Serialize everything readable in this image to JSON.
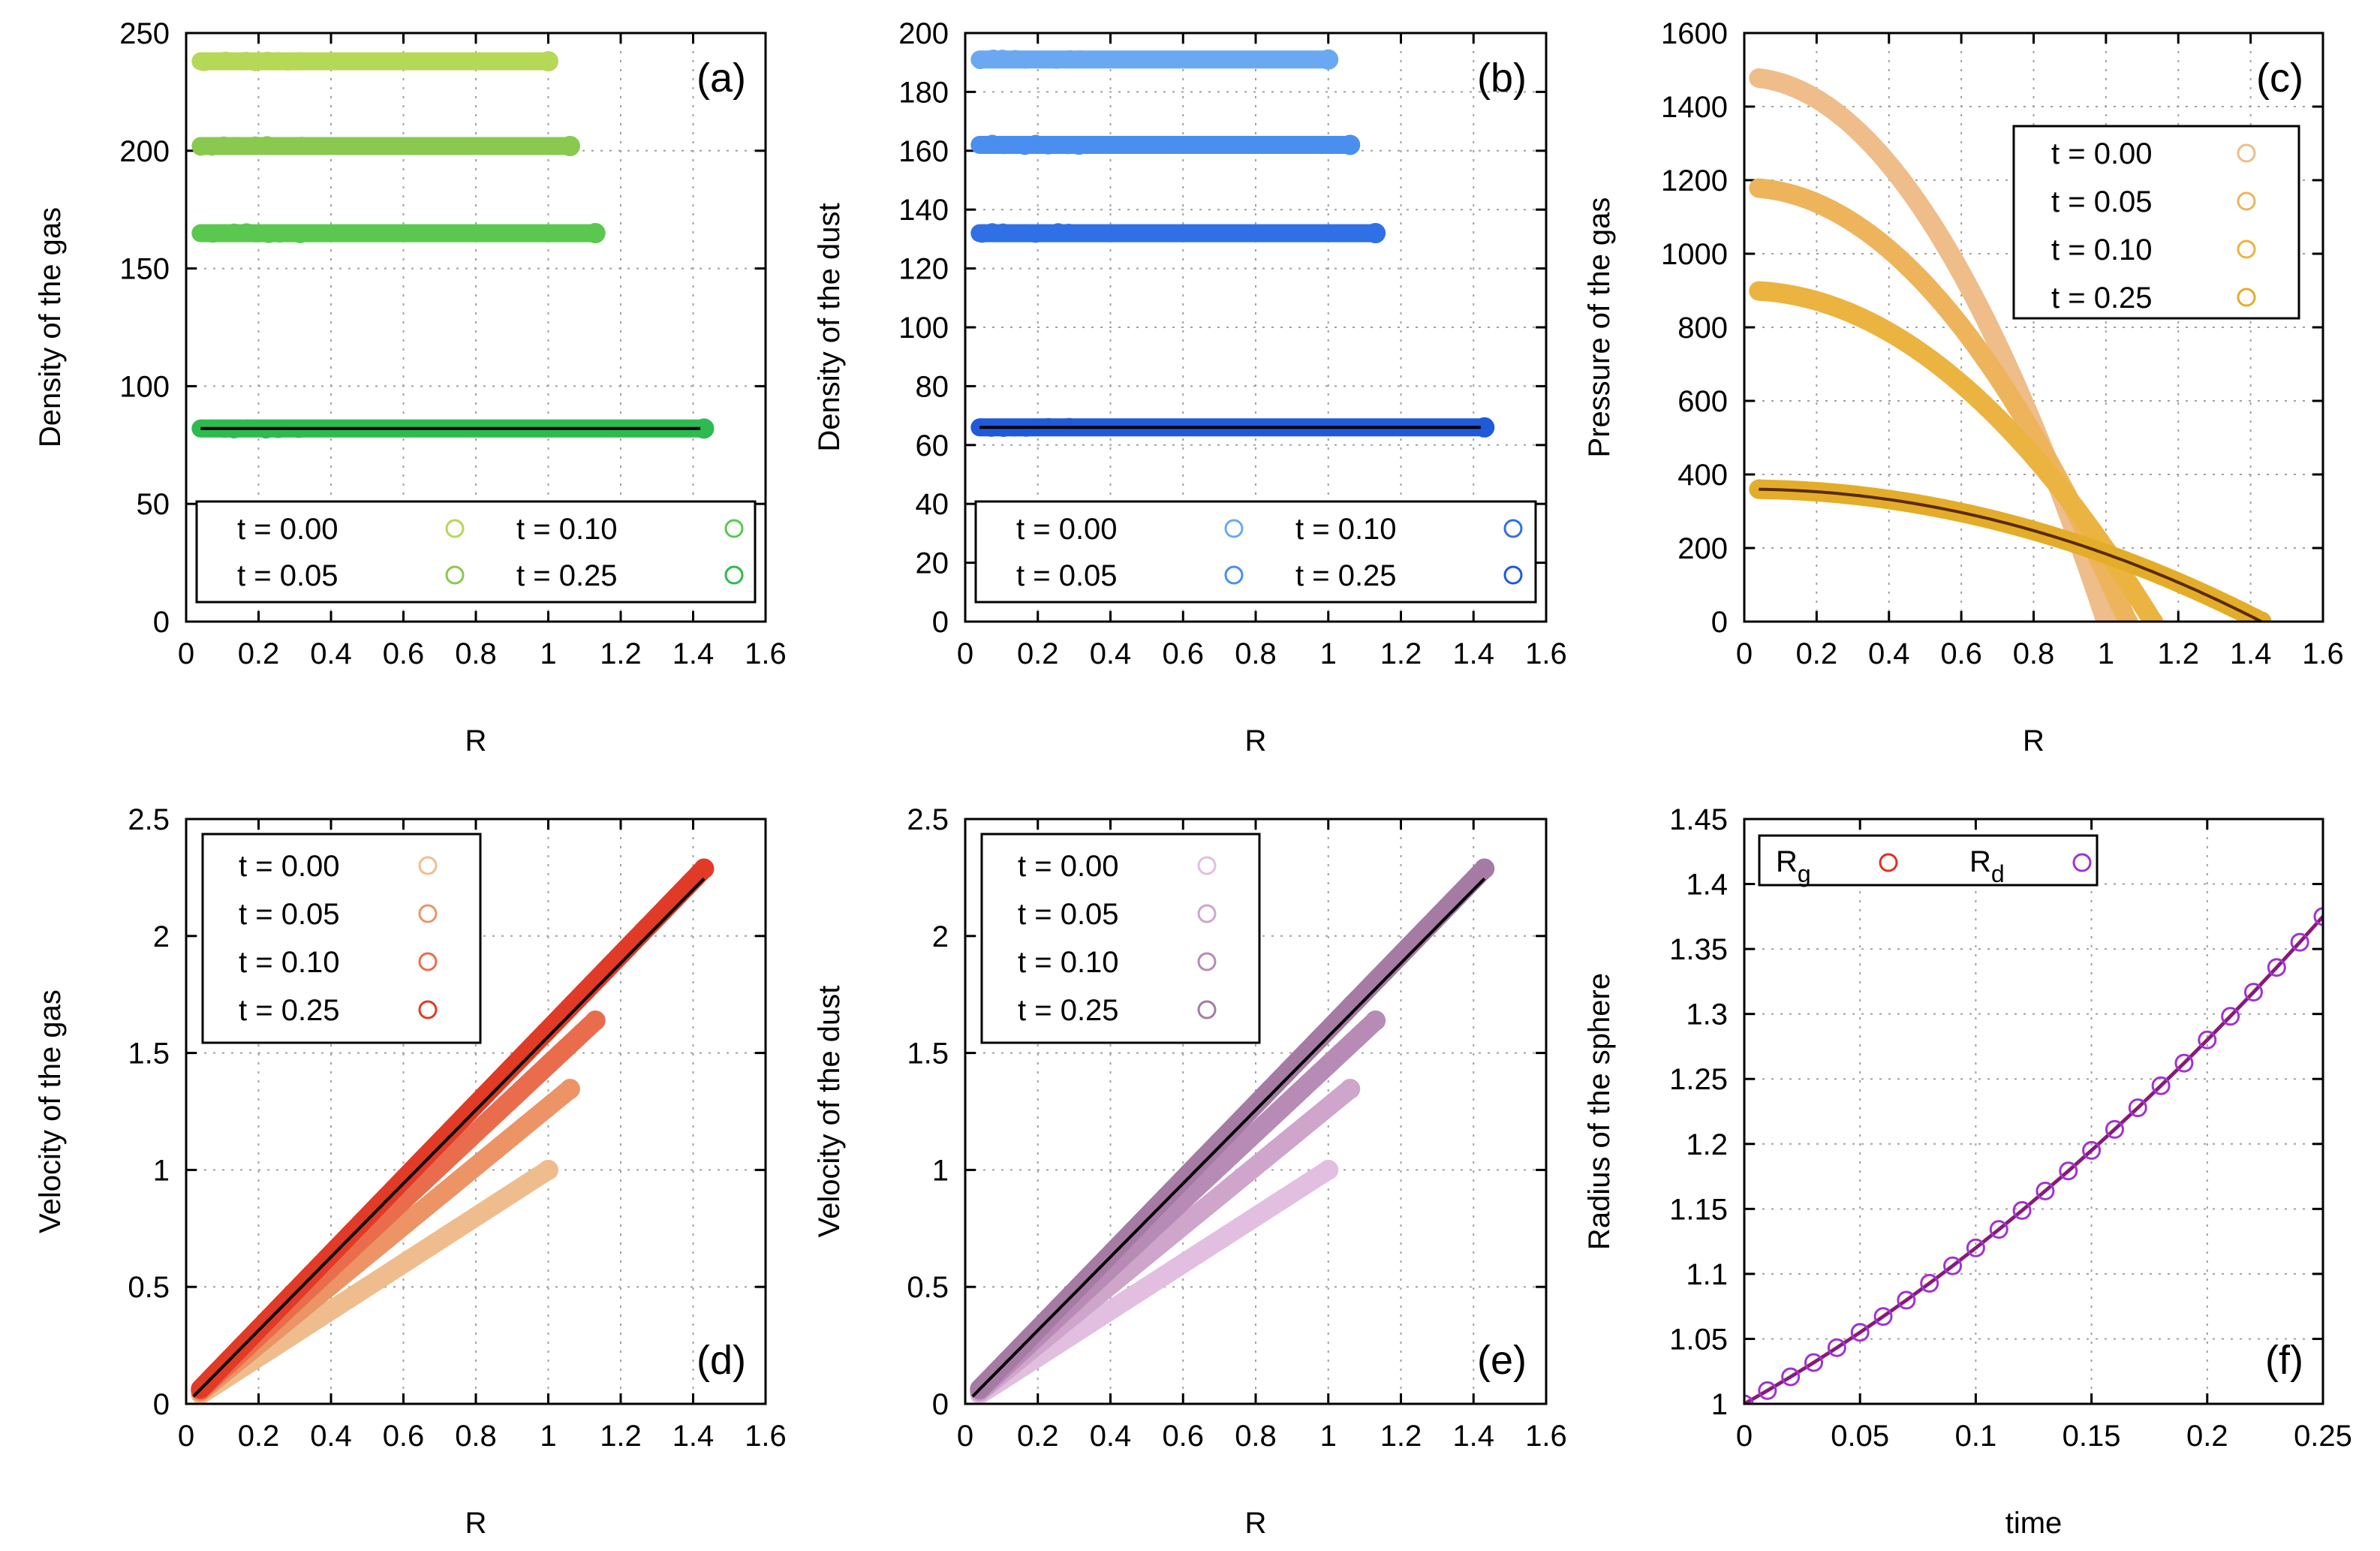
{
  "chart_data": [
    {
      "id": "a",
      "type": "scatter",
      "panel_label": "(a)",
      "xlabel": "R",
      "ylabel": "Density of the gas",
      "xlim": [
        0,
        1.6
      ],
      "ylim": [
        0,
        250
      ],
      "xticks": [
        0,
        0.2,
        0.4,
        0.6,
        0.8,
        1,
        1.2,
        1.4,
        1.6
      ],
      "xtick_labels": [
        "0",
        "0.2",
        "0.4",
        "0.6",
        "0.8",
        "1",
        "1.2",
        "1.4",
        "1.6"
      ],
      "yticks": [
        0,
        50,
        100,
        150,
        200,
        250
      ],
      "ytick_labels": [
        "0",
        "50",
        "100",
        "150",
        "200",
        "250"
      ],
      "legend": {
        "position": "bottom",
        "columns": 2
      },
      "series": [
        {
          "name": "t = 0.00",
          "color": "#b6d857",
          "kind": "flat",
          "value": 238,
          "rmax": 1.0
        },
        {
          "name": "t = 0.05",
          "color": "#8ac94f",
          "kind": "flat",
          "value": 202,
          "rmax": 1.06
        },
        {
          "name": "t = 0.10",
          "color": "#5ac84e",
          "kind": "flat",
          "value": 165,
          "rmax": 1.13
        },
        {
          "name": "t = 0.25",
          "color": "#2dbb4f",
          "kind": "flat",
          "value": 82,
          "rmax": 1.43
        }
      ],
      "analytic": {
        "kind": "flat",
        "value": 82,
        "rmax": 1.42,
        "color": "#000000"
      }
    },
    {
      "id": "b",
      "type": "scatter",
      "panel_label": "(b)",
      "xlabel": "R",
      "ylabel": "Density of the dust",
      "xlim": [
        0,
        1.6
      ],
      "ylim": [
        0,
        200
      ],
      "xticks": [
        0,
        0.2,
        0.4,
        0.6,
        0.8,
        1,
        1.2,
        1.4,
        1.6
      ],
      "xtick_labels": [
        "0",
        "0.2",
        "0.4",
        "0.6",
        "0.8",
        "1",
        "1.2",
        "1.4",
        "1.6"
      ],
      "yticks": [
        0,
        20,
        40,
        60,
        80,
        100,
        120,
        140,
        160,
        180,
        200
      ],
      "ytick_labels": [
        "0",
        "20",
        "40",
        "60",
        "80",
        "100",
        "120",
        "140",
        "160",
        "180",
        "200"
      ],
      "legend": {
        "position": "bottom",
        "columns": 2
      },
      "series": [
        {
          "name": "t = 0.00",
          "color": "#6aa9f2",
          "kind": "flat",
          "value": 191,
          "rmax": 1.0
        },
        {
          "name": "t = 0.05",
          "color": "#4a8ef0",
          "kind": "flat",
          "value": 162,
          "rmax": 1.06
        },
        {
          "name": "t = 0.10",
          "color": "#2f70e6",
          "kind": "flat",
          "value": 132,
          "rmax": 1.13
        },
        {
          "name": "t = 0.25",
          "color": "#1f5ad9",
          "kind": "flat",
          "value": 66,
          "rmax": 1.43
        }
      ],
      "analytic": {
        "kind": "flat",
        "value": 66,
        "rmax": 1.42,
        "color": "#000000"
      }
    },
    {
      "id": "c",
      "type": "scatter",
      "panel_label": "(c)",
      "xlabel": "R",
      "ylabel": "Pressure of the gas",
      "xlim": [
        0,
        1.6
      ],
      "ylim": [
        0,
        1600
      ],
      "xticks": [
        0,
        0.2,
        0.4,
        0.6,
        0.8,
        1,
        1.2,
        1.4,
        1.6
      ],
      "xtick_labels": [
        "0",
        "0.2",
        "0.4",
        "0.6",
        "0.8",
        "1",
        "1.2",
        "1.4",
        "1.6"
      ],
      "yticks": [
        0,
        200,
        400,
        600,
        800,
        1000,
        1200,
        1400,
        1600
      ],
      "ytick_labels": [
        "0",
        "200",
        "400",
        "600",
        "800",
        "1000",
        "1200",
        "1400",
        "1600"
      ],
      "legend": {
        "position": "top-right",
        "columns": 1
      },
      "series": [
        {
          "name": "t = 0.00",
          "color": "#eebd8a",
          "kind": "parabola",
          "p0": 1480,
          "rmax": 1.0
        },
        {
          "name": "t = 0.05",
          "color": "#edb45c",
          "kind": "parabola",
          "p0": 1180,
          "rmax": 1.06
        },
        {
          "name": "t = 0.10",
          "color": "#ebb33f",
          "kind": "parabola",
          "p0": 900,
          "rmax": 1.13
        },
        {
          "name": "t = 0.25",
          "color": "#e3ad2a",
          "kind": "parabola",
          "p0": 360,
          "rmax": 1.43
        }
      ],
      "analytic": {
        "kind": "parabola",
        "p0": 360,
        "rmax": 1.43,
        "color": "#5a2a00"
      }
    },
    {
      "id": "d",
      "type": "scatter",
      "panel_label": "(d)",
      "xlabel": "R",
      "ylabel": "Velocity of the gas",
      "xlim": [
        0,
        1.6
      ],
      "ylim": [
        0,
        2.5
      ],
      "xticks": [
        0,
        0.2,
        0.4,
        0.6,
        0.8,
        1,
        1.2,
        1.4,
        1.6
      ],
      "xtick_labels": [
        "0",
        "0.2",
        "0.4",
        "0.6",
        "0.8",
        "1",
        "1.2",
        "1.4",
        "1.6"
      ],
      "yticks": [
        0,
        0.5,
        1,
        1.5,
        2,
        2.5
      ],
      "ytick_labels": [
        "0",
        "0.5",
        "1",
        "1.5",
        "2",
        "2.5"
      ],
      "legend": {
        "position": "top-left",
        "columns": 1
      },
      "series": [
        {
          "name": "t = 0.00",
          "color": "#efbd8d",
          "kind": "linear",
          "slope": 1.0,
          "rmax": 1.0
        },
        {
          "name": "t = 0.05",
          "color": "#ec9466",
          "kind": "linear",
          "slope": 1.27,
          "rmax": 1.06
        },
        {
          "name": "t = 0.10",
          "color": "#e96d4c",
          "kind": "linear",
          "slope": 1.45,
          "rmax": 1.13
        },
        {
          "name": "t = 0.25",
          "color": "#e13a26",
          "kind": "linear",
          "slope": 1.6,
          "rmax": 1.43
        }
      ],
      "analytic": {
        "kind": "linear",
        "slope": 1.57,
        "rmin": 0.02,
        "rmax": 1.43,
        "color": "#000000"
      }
    },
    {
      "id": "e",
      "type": "scatter",
      "panel_label": "(e)",
      "xlabel": "R",
      "ylabel": "Velocity of the dust",
      "xlim": [
        0,
        1.6
      ],
      "ylim": [
        0,
        2.5
      ],
      "xticks": [
        0,
        0.2,
        0.4,
        0.6,
        0.8,
        1,
        1.2,
        1.4,
        1.6
      ],
      "xtick_labels": [
        "0",
        "0.2",
        "0.4",
        "0.6",
        "0.8",
        "1",
        "1.2",
        "1.4",
        "1.6"
      ],
      "yticks": [
        0,
        0.5,
        1,
        1.5,
        2,
        2.5
      ],
      "ytick_labels": [
        "0",
        "0.5",
        "1",
        "1.5",
        "2",
        "2.5"
      ],
      "legend": {
        "position": "top-left",
        "columns": 1
      },
      "series": [
        {
          "name": "t = 0.00",
          "color": "#e2bfe0",
          "kind": "linear",
          "slope": 1.0,
          "rmax": 1.0
        },
        {
          "name": "t = 0.05",
          "color": "#cfa5cc",
          "kind": "linear",
          "slope": 1.27,
          "rmax": 1.06
        },
        {
          "name": "t = 0.10",
          "color": "#b88ab6",
          "kind": "linear",
          "slope": 1.45,
          "rmax": 1.13
        },
        {
          "name": "t = 0.25",
          "color": "#a57aa3",
          "kind": "linear",
          "slope": 1.6,
          "rmax": 1.43
        }
      ],
      "analytic": {
        "kind": "linear",
        "slope": 1.57,
        "rmin": 0.02,
        "rmax": 1.43,
        "color": "#000000"
      }
    },
    {
      "id": "f",
      "type": "line",
      "panel_label": "(f)",
      "xlabel": "time",
      "ylabel": "Radius of the sphere",
      "xlim": [
        0,
        0.25
      ],
      "ylim": [
        1,
        1.45
      ],
      "xticks": [
        0,
        0.05,
        0.1,
        0.15,
        0.2,
        0.25
      ],
      "xtick_labels": [
        "0",
        "0.05",
        "0.1",
        "0.15",
        "0.2",
        "0.25"
      ],
      "yticks": [
        1,
        1.05,
        1.1,
        1.15,
        1.2,
        1.25,
        1.3,
        1.35,
        1.4,
        1.45
      ],
      "ytick_labels": [
        "1",
        "1.05",
        "1.1",
        "1.15",
        "1.2",
        "1.25",
        "1.3",
        "1.35",
        "1.4",
        "1.45"
      ],
      "legend": {
        "position": "top-left",
        "columns": 2
      },
      "series": [
        {
          "name": "R",
          "subscript": "g",
          "color": "#e0301e"
        },
        {
          "name": "R",
          "subscript": "d",
          "color": "#a033d0"
        }
      ],
      "x": [
        0,
        0.01,
        0.02,
        0.03,
        0.04,
        0.05,
        0.06,
        0.07,
        0.08,
        0.09,
        0.1,
        0.11,
        0.12,
        0.13,
        0.14,
        0.15,
        0.16,
        0.17,
        0.18,
        0.19,
        0.2,
        0.21,
        0.22,
        0.23,
        0.24,
        0.25
      ],
      "y": [
        1,
        1.0102,
        1.0208,
        1.0318,
        1.0432,
        1.055,
        1.0672,
        1.0798,
        1.0928,
        1.1062,
        1.12,
        1.1342,
        1.1488,
        1.1638,
        1.1792,
        1.195,
        1.2112,
        1.2278,
        1.2448,
        1.2622,
        1.28,
        1.2982,
        1.3168,
        1.3358,
        1.3552,
        1.375
      ],
      "analytic_color": "#7a1c8a"
    }
  ]
}
